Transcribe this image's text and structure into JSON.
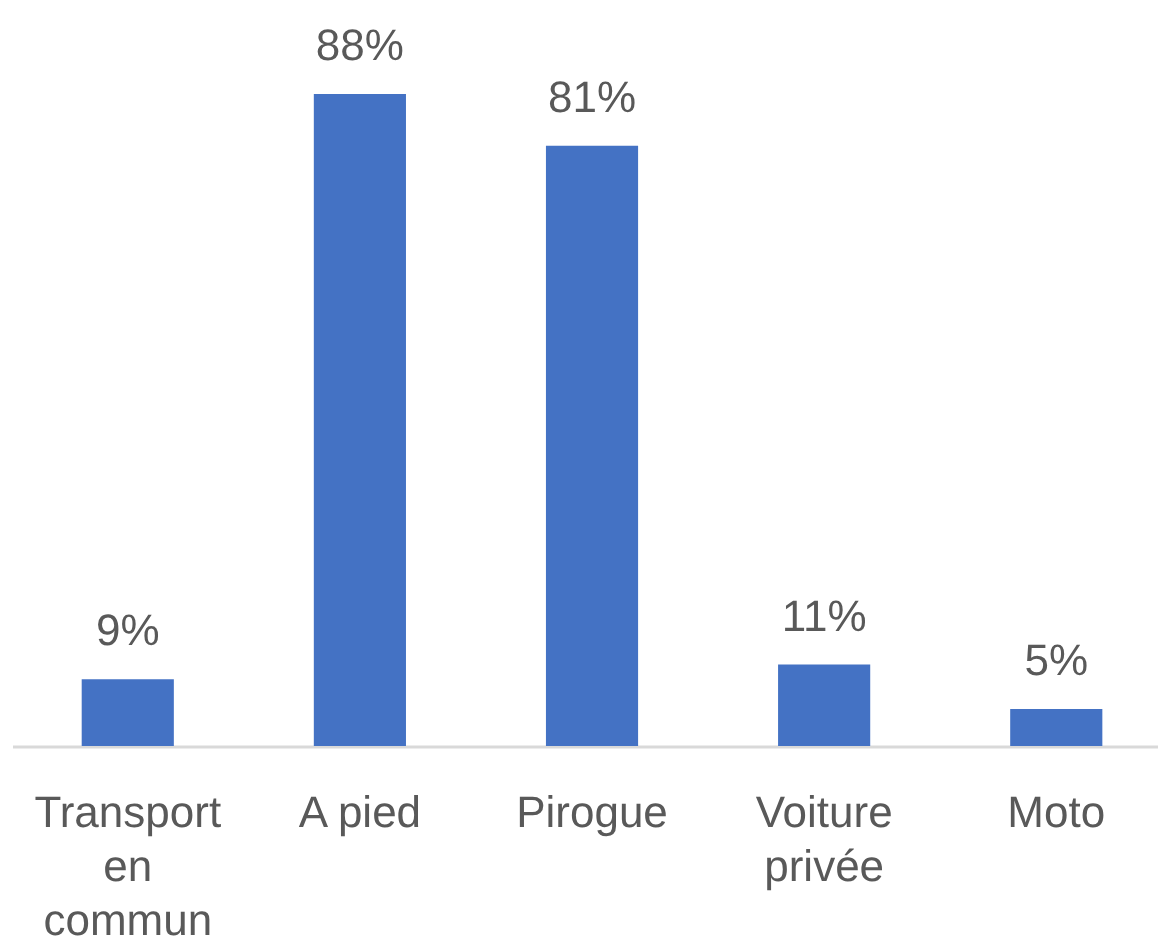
{
  "chart_data": {
    "type": "bar",
    "categories": [
      "Transport en commun",
      "A pied",
      "Pirogue",
      "Voiture privée",
      "Moto"
    ],
    "values": [
      9,
      88,
      81,
      11,
      5
    ],
    "color": "#4472c4",
    "value_labels": [
      "9%",
      "88%",
      "81%",
      "11%",
      "5%"
    ],
    "tick_labels": "x"
  }
}
